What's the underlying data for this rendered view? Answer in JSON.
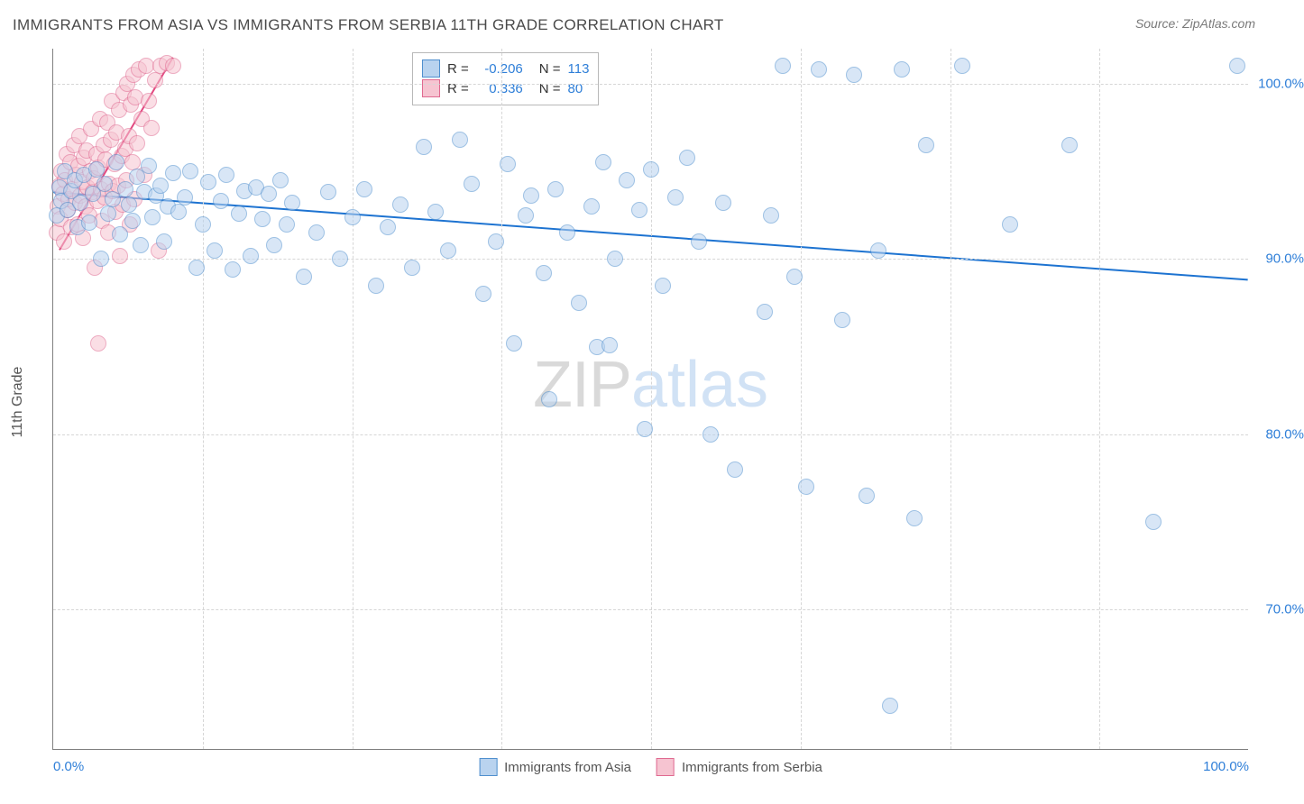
{
  "title": "IMMIGRANTS FROM ASIA VS IMMIGRANTS FROM SERBIA 11TH GRADE CORRELATION CHART",
  "source": "Source: ZipAtlas.com",
  "watermark": {
    "part1": "ZIP",
    "part2": "atlas"
  },
  "y_axis_title": "11th Grade",
  "plot": {
    "x_range": [
      0,
      100
    ],
    "y_range": [
      62,
      102
    ],
    "x_ticks": [
      0,
      100
    ],
    "x_tick_labels": [
      "0.0%",
      "100.0%"
    ],
    "x_minor_ticks": [
      12.5,
      25,
      37.5,
      50,
      62.5,
      75,
      87.5
    ],
    "y_ticks": [
      70,
      80,
      90,
      100
    ],
    "y_tick_labels": [
      "70.0%",
      "80.0%",
      "90.0%",
      "100.0%"
    ],
    "background": "#ffffff",
    "grid_color": "#d6d6d6",
    "axis_color": "#808080"
  },
  "series": {
    "asia": {
      "label": "Immigrants from Asia",
      "color_fill": "#b9d3ef",
      "color_stroke": "#4f8fce",
      "fill_opacity": 0.55,
      "marker_radius": 9,
      "trend": {
        "x1": 0,
        "y1": 93.8,
        "x2": 100,
        "y2": 88.8,
        "stroke": "#1d73d1",
        "width": 2
      },
      "R": "-0.206",
      "N": "113",
      "points": [
        [
          0.3,
          92.5
        ],
        [
          0.5,
          94.1
        ],
        [
          0.7,
          93.3
        ],
        [
          1.0,
          95.0
        ],
        [
          1.2,
          92.8
        ],
        [
          1.5,
          93.9
        ],
        [
          1.8,
          94.5
        ],
        [
          2.0,
          91.8
        ],
        [
          2.3,
          93.2
        ],
        [
          2.6,
          94.8
        ],
        [
          3.0,
          92.1
        ],
        [
          3.3,
          93.7
        ],
        [
          3.6,
          95.1
        ],
        [
          4.0,
          90.0
        ],
        [
          4.3,
          94.3
        ],
        [
          4.6,
          92.6
        ],
        [
          5.0,
          93.4
        ],
        [
          5.3,
          95.5
        ],
        [
          5.6,
          91.4
        ],
        [
          6.0,
          94.0
        ],
        [
          6.3,
          93.1
        ],
        [
          6.6,
          92.2
        ],
        [
          7.0,
          94.7
        ],
        [
          7.3,
          90.8
        ],
        [
          7.6,
          93.8
        ],
        [
          8.0,
          95.3
        ],
        [
          8.3,
          92.4
        ],
        [
          8.6,
          93.6
        ],
        [
          9.0,
          94.2
        ],
        [
          9.3,
          91.0
        ],
        [
          9.6,
          93.0
        ],
        [
          10.0,
          94.9
        ],
        [
          10.5,
          92.7
        ],
        [
          11.0,
          93.5
        ],
        [
          11.5,
          95.0
        ],
        [
          12.0,
          89.5
        ],
        [
          12.5,
          92.0
        ],
        [
          13.0,
          94.4
        ],
        [
          13.5,
          90.5
        ],
        [
          14.0,
          93.3
        ],
        [
          14.5,
          94.8
        ],
        [
          15.0,
          89.4
        ],
        [
          15.5,
          92.6
        ],
        [
          16.0,
          93.9
        ],
        [
          16.5,
          90.2
        ],
        [
          17.0,
          94.1
        ],
        [
          17.5,
          92.3
        ],
        [
          18.0,
          93.7
        ],
        [
          18.5,
          90.8
        ],
        [
          19.0,
          94.5
        ],
        [
          19.5,
          92.0
        ],
        [
          20.0,
          93.2
        ],
        [
          21.0,
          89.0
        ],
        [
          22.0,
          91.5
        ],
        [
          23.0,
          93.8
        ],
        [
          24.0,
          90.0
        ],
        [
          25.0,
          92.4
        ],
        [
          26.0,
          94.0
        ],
        [
          27.0,
          88.5
        ],
        [
          28.0,
          91.8
        ],
        [
          29.0,
          93.1
        ],
        [
          30.0,
          89.5
        ],
        [
          31.0,
          96.4
        ],
        [
          32.0,
          92.7
        ],
        [
          33.0,
          90.5
        ],
        [
          34.0,
          96.8
        ],
        [
          35.0,
          94.3
        ],
        [
          36.0,
          88.0
        ],
        [
          37.0,
          91.0
        ],
        [
          38.0,
          95.4
        ],
        [
          38.5,
          85.2
        ],
        [
          39.5,
          92.5
        ],
        [
          40.0,
          93.6
        ],
        [
          41.0,
          89.2
        ],
        [
          41.5,
          82.0
        ],
        [
          42.0,
          94.0
        ],
        [
          43.0,
          91.5
        ],
        [
          44.0,
          87.5
        ],
        [
          45.0,
          93.0
        ],
        [
          45.5,
          85.0
        ],
        [
          46.0,
          95.5
        ],
        [
          46.5,
          85.1
        ],
        [
          47.0,
          90.0
        ],
        [
          48.0,
          94.5
        ],
        [
          49.0,
          92.8
        ],
        [
          49.5,
          80.3
        ],
        [
          50.0,
          95.1
        ],
        [
          51.0,
          88.5
        ],
        [
          52.0,
          93.5
        ],
        [
          53.0,
          95.8
        ],
        [
          54.0,
          91.0
        ],
        [
          55.0,
          80.0
        ],
        [
          56.0,
          93.2
        ],
        [
          57.0,
          78.0
        ],
        [
          59.5,
          87.0
        ],
        [
          60.0,
          92.5
        ],
        [
          61.0,
          101.0
        ],
        [
          62.0,
          89.0
        ],
        [
          63.0,
          77.0
        ],
        [
          64.0,
          100.8
        ],
        [
          66.0,
          86.5
        ],
        [
          67.0,
          100.5
        ],
        [
          68.0,
          76.5
        ],
        [
          69.0,
          90.5
        ],
        [
          70.0,
          64.5
        ],
        [
          71.0,
          100.8
        ],
        [
          72.0,
          75.2
        ],
        [
          73.0,
          96.5
        ],
        [
          76.0,
          101.0
        ],
        [
          80.0,
          92.0
        ],
        [
          85.0,
          96.5
        ],
        [
          92.0,
          75.0
        ],
        [
          99.0,
          101.0
        ]
      ]
    },
    "serbia": {
      "label": "Immigrants from Serbia",
      "color_fill": "#f6c4d1",
      "color_stroke": "#e06990",
      "fill_opacity": 0.55,
      "marker_radius": 9,
      "trend": {
        "x1": 0.5,
        "y1": 90.5,
        "x2": 10.0,
        "y2": 101.5,
        "stroke": "#e24880",
        "width": 2
      },
      "R": "0.336",
      "N": "80",
      "points": [
        [
          0.3,
          91.5
        ],
        [
          0.4,
          93.0
        ],
        [
          0.5,
          94.2
        ],
        [
          0.6,
          92.3
        ],
        [
          0.7,
          95.0
        ],
        [
          0.8,
          93.7
        ],
        [
          0.9,
          91.0
        ],
        [
          1.0,
          94.5
        ],
        [
          1.1,
          96.0
        ],
        [
          1.2,
          92.8
        ],
        [
          1.3,
          93.4
        ],
        [
          1.4,
          95.5
        ],
        [
          1.5,
          91.8
        ],
        [
          1.6,
          94.0
        ],
        [
          1.7,
          96.5
        ],
        [
          1.8,
          93.2
        ],
        [
          1.9,
          94.8
        ],
        [
          2.0,
          92.0
        ],
        [
          2.1,
          95.3
        ],
        [
          2.2,
          97.0
        ],
        [
          2.3,
          93.6
        ],
        [
          2.4,
          94.4
        ],
        [
          2.5,
          91.2
        ],
        [
          2.6,
          95.8
        ],
        [
          2.7,
          93.0
        ],
        [
          2.8,
          96.2
        ],
        [
          2.9,
          94.1
        ],
        [
          3.0,
          92.5
        ],
        [
          3.1,
          95.0
        ],
        [
          3.2,
          97.4
        ],
        [
          3.3,
          93.8
        ],
        [
          3.4,
          94.6
        ],
        [
          3.5,
          89.5
        ],
        [
          3.6,
          96.0
        ],
        [
          3.7,
          93.3
        ],
        [
          3.8,
          95.2
        ],
        [
          3.9,
          98.0
        ],
        [
          4.0,
          94.0
        ],
        [
          4.1,
          92.2
        ],
        [
          4.2,
          96.5
        ],
        [
          4.3,
          93.5
        ],
        [
          4.4,
          95.7
        ],
        [
          4.5,
          97.8
        ],
        [
          4.6,
          91.5
        ],
        [
          4.7,
          94.3
        ],
        [
          4.8,
          96.8
        ],
        [
          4.9,
          99.0
        ],
        [
          5.0,
          93.9
        ],
        [
          5.1,
          95.4
        ],
        [
          5.2,
          92.7
        ],
        [
          5.3,
          97.2
        ],
        [
          5.4,
          94.2
        ],
        [
          5.5,
          98.5
        ],
        [
          5.6,
          90.2
        ],
        [
          5.7,
          95.9
        ],
        [
          5.8,
          93.1
        ],
        [
          5.9,
          99.5
        ],
        [
          6.0,
          96.3
        ],
        [
          6.1,
          94.5
        ],
        [
          6.2,
          100.0
        ],
        [
          6.3,
          97.0
        ],
        [
          6.4,
          92.0
        ],
        [
          6.5,
          98.8
        ],
        [
          6.6,
          95.5
        ],
        [
          6.7,
          100.5
        ],
        [
          6.8,
          93.4
        ],
        [
          6.9,
          99.2
        ],
        [
          7.0,
          96.6
        ],
        [
          7.2,
          100.8
        ],
        [
          7.4,
          98.0
        ],
        [
          7.6,
          94.8
        ],
        [
          7.8,
          101.0
        ],
        [
          8.0,
          99.0
        ],
        [
          8.2,
          97.5
        ],
        [
          8.5,
          100.2
        ],
        [
          8.8,
          90.5
        ],
        [
          9.0,
          101.0
        ],
        [
          9.5,
          101.2
        ],
        [
          10.0,
          101.0
        ],
        [
          3.8,
          85.2
        ]
      ]
    }
  },
  "legend_top": {
    "rows": [
      {
        "series": "asia",
        "R_label": "R =",
        "N_label": "N ="
      },
      {
        "series": "serbia",
        "R_label": "R =",
        "N_label": "N ="
      }
    ]
  },
  "legend_bottom": [
    {
      "series": "asia"
    },
    {
      "series": "serbia"
    }
  ]
}
